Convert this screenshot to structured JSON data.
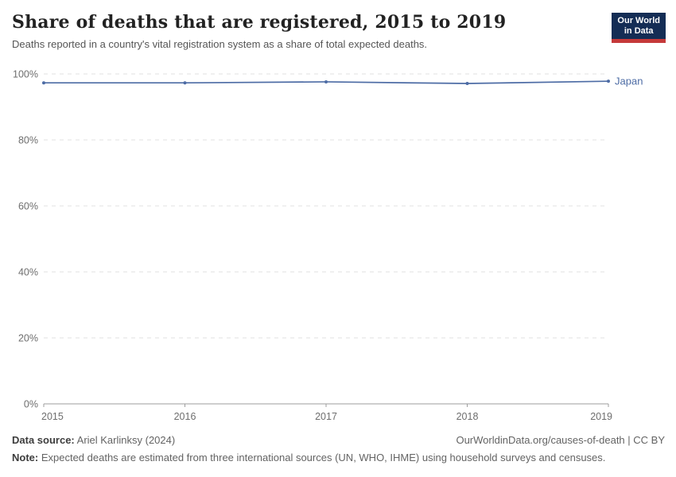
{
  "header": {
    "title": "Share of deaths that are registered, 2015 to 2019",
    "subtitle": "Deaths reported in a country's vital registration system as a share of total expected deaths.",
    "logo": {
      "line1": "Our World",
      "line2": "in Data",
      "bg": "#142d55",
      "accent": "#c5393a"
    }
  },
  "chart_data": {
    "type": "line",
    "title": "Share of deaths that are registered, 2015 to 2019",
    "x": [
      2015,
      2016,
      2017,
      2018,
      2019
    ],
    "series": [
      {
        "name": "Japan",
        "values": [
          97.3,
          97.3,
          97.6,
          97.1,
          97.8
        ],
        "color": "#4d6ca5"
      }
    ],
    "ylim": [
      0,
      100
    ],
    "yticks": [
      0,
      20,
      40,
      60,
      80,
      100
    ],
    "ytick_format": "{}%",
    "grid": true,
    "legend_position": "end-of-line",
    "colors": {
      "gridline": "#e0e0e0",
      "axis": "#9e9e9e",
      "tick_label": "#6e6e6e"
    }
  },
  "footer": {
    "source_label": "Data source:",
    "source_value": " Ariel Karlinksy (2024)",
    "attribution": "OurWorldinData.org/causes-of-death | CC BY",
    "note_label": "Note:",
    "note_value": " Expected deaths are estimated from three international sources (UN, WHO, IHME) using household surveys and censuses."
  }
}
